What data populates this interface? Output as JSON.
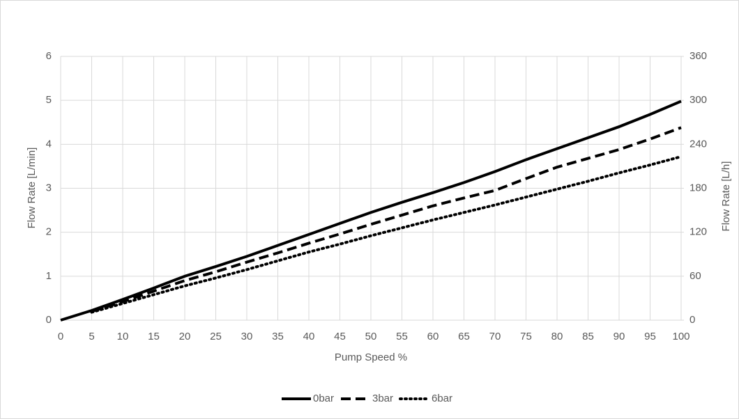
{
  "chart_data": {
    "type": "line",
    "x_label": "Pump Speed %",
    "y_label": "Flow Rate [L/min]",
    "y2_label": "Flow Rate [L/h]",
    "x": [
      0,
      5,
      10,
      15,
      20,
      25,
      30,
      35,
      40,
      45,
      50,
      55,
      60,
      65,
      70,
      75,
      80,
      85,
      90,
      95,
      100
    ],
    "series": [
      {
        "name": "0bar",
        "color": "#000000",
        "line_style": "solid",
        "values": [
          0,
          0.22,
          0.47,
          0.73,
          1.0,
          1.22,
          1.45,
          1.7,
          1.95,
          2.2,
          2.45,
          2.68,
          2.9,
          3.13,
          3.38,
          3.65,
          3.9,
          4.15,
          4.4,
          4.68,
          4.98
        ]
      },
      {
        "name": "3bar",
        "color": "#000000",
        "line_style": "dash",
        "values": [
          null,
          0.2,
          0.42,
          0.66,
          0.9,
          1.1,
          1.32,
          1.53,
          1.75,
          1.96,
          2.18,
          2.39,
          2.6,
          2.78,
          2.95,
          3.22,
          3.48,
          3.68,
          3.88,
          4.12,
          4.38
        ]
      },
      {
        "name": "6bar",
        "color": "#000000",
        "line_style": "dot",
        "values": [
          null,
          0.18,
          0.38,
          0.58,
          0.78,
          0.96,
          1.15,
          1.35,
          1.55,
          1.73,
          1.92,
          2.1,
          2.28,
          2.45,
          2.62,
          2.8,
          2.98,
          3.16,
          3.35,
          3.53,
          3.72
        ]
      }
    ],
    "xlim": [
      0,
      100
    ],
    "xticks": [
      0,
      5,
      10,
      15,
      20,
      25,
      30,
      35,
      40,
      45,
      50,
      55,
      60,
      65,
      70,
      75,
      80,
      85,
      90,
      95,
      100
    ],
    "ylim": [
      0,
      6
    ],
    "yticks": [
      0,
      1,
      2,
      3,
      4,
      5,
      6
    ],
    "y2lim": [
      0,
      360
    ],
    "y2ticks": [
      0,
      60,
      120,
      180,
      240,
      300,
      360
    ],
    "grid": true,
    "legend": "bottom"
  }
}
